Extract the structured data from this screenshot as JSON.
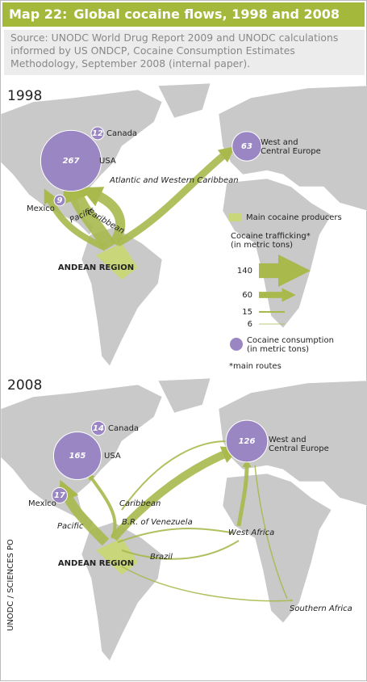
{
  "header": {
    "label": "Map 22:",
    "title": "Global cocaine flows, 1998 and 2008"
  },
  "source": "Source: UNODC World Drug Report 2009 and UNODC calculations informed by US ONDCP, Cocaine Consumption Estimates Methodology, September 2008 (internal paper).",
  "maps": [
    {
      "year": "1998",
      "bubbles": [
        {
          "label": "USA",
          "value": 267
        },
        {
          "label": "Canada",
          "value": 12
        },
        {
          "label": "Mexico",
          "value": 9
        },
        {
          "label": "West and Central Europe",
          "value": 63
        }
      ],
      "routes": [
        "Atlantic and Western Caribbean",
        "Caribbean",
        "Pacific"
      ],
      "region": "ANDEAN REGION"
    },
    {
      "year": "2008",
      "bubbles": [
        {
          "label": "USA",
          "value": 165
        },
        {
          "label": "Canada",
          "value": 14
        },
        {
          "label": "Mexico",
          "value": 17
        },
        {
          "label": "West and Central Europe",
          "value": 126
        }
      ],
      "routes": [
        "Caribbean",
        "B.R. of Venezuela",
        "Pacific",
        "Brazil",
        "West Africa",
        "Southern Africa"
      ],
      "region": "ANDEAN REGION"
    }
  ],
  "legend": {
    "producers": "Main cocaine producers",
    "trafficking": "Cocaine trafficking*",
    "trafficking_unit": "(in metric tons)",
    "widths": [
      140,
      60,
      15,
      6
    ],
    "consumption": "Cocaine consumption",
    "consumption_unit": "(in metric tons)",
    "note": "*main routes"
  },
  "credit": "UNODC / SCIENCES PO"
}
